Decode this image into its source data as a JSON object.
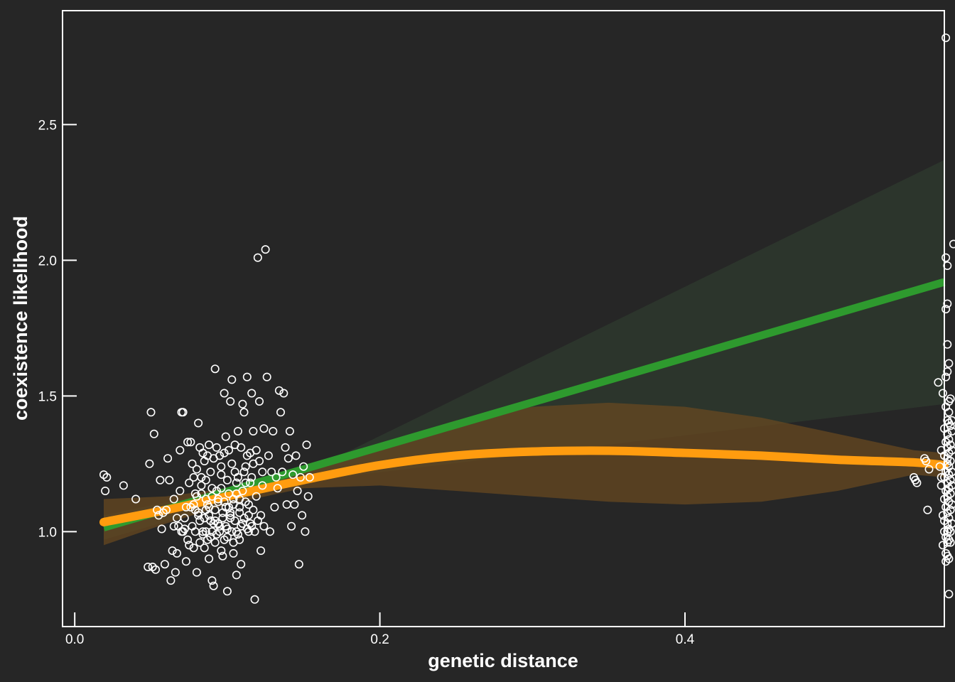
{
  "chart_data": {
    "type": "scatter",
    "xlabel": "genetic distance",
    "ylabel": "coexistence likelihood",
    "xlim": [
      -0.008,
      0.57
    ],
    "ylim": [
      0.65,
      2.92
    ],
    "xticks": [
      0.0,
      0.2,
      0.4
    ],
    "xtick_labels": [
      "0.0",
      "0.2",
      "0.4"
    ],
    "yticks": [
      1.0,
      1.5,
      2.0,
      2.5
    ],
    "ytick_labels": [
      "1.0",
      "1.5",
      "2.0",
      "2.5"
    ],
    "grid": false,
    "legend": "none",
    "colors": {
      "background": "#262626",
      "points": "#ffffff",
      "linear_fit": "#2e9a2e",
      "smooth_fit": "#ff9c0f",
      "linear_band": "#2f3b2f",
      "smooth_band": "#6b4a1f"
    },
    "points": [
      [
        0.019,
        1.21
      ],
      [
        0.02,
        1.15
      ],
      [
        0.021,
        1.2
      ],
      [
        0.032,
        1.17
      ],
      [
        0.04,
        1.12
      ],
      [
        0.048,
        0.87
      ],
      [
        0.049,
        1.25
      ],
      [
        0.05,
        1.44
      ],
      [
        0.051,
        0.87
      ],
      [
        0.052,
        1.36
      ],
      [
        0.053,
        0.86
      ],
      [
        0.054,
        1.08
      ],
      [
        0.055,
        1.06
      ],
      [
        0.056,
        1.19
      ],
      [
        0.057,
        1.01
      ],
      [
        0.058,
        1.07
      ],
      [
        0.059,
        0.88
      ],
      [
        0.06,
        1.08
      ],
      [
        0.061,
        1.27
      ],
      [
        0.062,
        1.19
      ],
      [
        0.063,
        0.82
      ],
      [
        0.064,
        0.93
      ],
      [
        0.065,
        1.02
      ],
      [
        0.066,
        0.85
      ],
      [
        0.067,
        0.92
      ],
      [
        0.068,
        1.02
      ],
      [
        0.069,
        1.3
      ],
      [
        0.07,
        1.44
      ],
      [
        0.071,
        1.44
      ],
      [
        0.072,
        1.01
      ],
      [
        0.073,
        0.89
      ],
      [
        0.074,
        1.33
      ],
      [
        0.075,
        0.95
      ],
      [
        0.076,
        1.33
      ],
      [
        0.077,
        1.25
      ],
      [
        0.078,
        1.2
      ],
      [
        0.079,
        1.08
      ],
      [
        0.08,
        0.85
      ],
      [
        0.081,
        1.4
      ],
      [
        0.082,
        1.31
      ],
      [
        0.083,
        1.17
      ],
      [
        0.084,
        1.0
      ],
      [
        0.085,
        1.26
      ],
      [
        0.086,
        1.12
      ],
      [
        0.087,
        0.97
      ],
      [
        0.088,
        1.32
      ],
      [
        0.089,
        1.04
      ],
      [
        0.09,
        0.82
      ],
      [
        0.091,
        0.8
      ],
      [
        0.092,
        1.6
      ],
      [
        0.093,
        1.15
      ],
      [
        0.094,
        1.03
      ],
      [
        0.095,
        1.28
      ],
      [
        0.096,
        1.21
      ],
      [
        0.097,
        0.91
      ],
      [
        0.098,
        1.51
      ],
      [
        0.099,
        1.35
      ],
      [
        0.1,
        0.78
      ],
      [
        0.101,
        1.09
      ],
      [
        0.102,
        1.48
      ],
      [
        0.103,
        1.56
      ],
      [
        0.104,
        0.96
      ],
      [
        0.105,
        1.22
      ],
      [
        0.106,
        0.84
      ],
      [
        0.107,
        1.37
      ],
      [
        0.108,
        1.12
      ],
      [
        0.109,
        0.88
      ],
      [
        0.11,
        1.47
      ],
      [
        0.111,
        1.44
      ],
      [
        0.112,
        1.18
      ],
      [
        0.113,
        1.57
      ],
      [
        0.114,
        1.0
      ],
      [
        0.115,
        1.29
      ],
      [
        0.116,
        1.51
      ],
      [
        0.117,
        1.37
      ],
      [
        0.118,
        0.75
      ],
      [
        0.119,
        1.3
      ],
      [
        0.12,
        2.01
      ],
      [
        0.121,
        1.48
      ],
      [
        0.122,
        0.93
      ],
      [
        0.123,
        1.22
      ],
      [
        0.124,
        1.38
      ],
      [
        0.125,
        2.04
      ],
      [
        0.126,
        1.57
      ],
      [
        0.127,
        1.28
      ],
      [
        0.128,
        1.0
      ],
      [
        0.129,
        1.22
      ],
      [
        0.13,
        1.37
      ],
      [
        0.131,
        1.09
      ],
      [
        0.132,
        1.2
      ],
      [
        0.133,
        1.16
      ],
      [
        0.134,
        1.52
      ],
      [
        0.135,
        1.44
      ],
      [
        0.136,
        1.22
      ],
      [
        0.137,
        1.51
      ],
      [
        0.138,
        1.31
      ],
      [
        0.139,
        1.1
      ],
      [
        0.14,
        1.27
      ],
      [
        0.141,
        1.37
      ],
      [
        0.142,
        1.02
      ],
      [
        0.143,
        1.21
      ],
      [
        0.144,
        1.1
      ],
      [
        0.145,
        1.28
      ],
      [
        0.146,
        1.15
      ],
      [
        0.147,
        0.88
      ],
      [
        0.148,
        1.2
      ],
      [
        0.149,
        1.06
      ],
      [
        0.15,
        1.24
      ],
      [
        0.151,
        1.0
      ],
      [
        0.152,
        1.32
      ],
      [
        0.153,
        1.13
      ],
      [
        0.154,
        1.2
      ],
      [
        0.085,
        1.05
      ],
      [
        0.086,
        1.0
      ],
      [
        0.087,
        1.1
      ],
      [
        0.088,
        1.06
      ],
      [
        0.089,
        0.98
      ],
      [
        0.09,
        1.13
      ],
      [
        0.091,
        1.03
      ],
      [
        0.092,
        1.08
      ],
      [
        0.093,
        0.99
      ],
      [
        0.094,
        1.11
      ],
      [
        0.095,
        1.02
      ],
      [
        0.096,
        1.16
      ],
      [
        0.097,
        1.05
      ],
      [
        0.098,
        0.97
      ],
      [
        0.099,
        1.09
      ],
      [
        0.1,
        1.01
      ],
      [
        0.101,
        1.14
      ],
      [
        0.102,
        1.06
      ],
      [
        0.103,
        1.0
      ],
      [
        0.104,
        1.12
      ],
      [
        0.105,
        1.04
      ],
      [
        0.106,
        1.18
      ],
      [
        0.107,
        0.99
      ],
      [
        0.108,
        1.07
      ],
      [
        0.109,
        1.02
      ],
      [
        0.11,
        1.15
      ],
      [
        0.111,
        1.05
      ],
      [
        0.112,
        1.24
      ],
      [
        0.113,
        1.01
      ],
      [
        0.114,
        1.1
      ],
      [
        0.115,
        1.03
      ],
      [
        0.116,
        1.2
      ],
      [
        0.117,
        1.08
      ],
      [
        0.118,
        1.0
      ],
      [
        0.119,
        1.13
      ],
      [
        0.12,
        1.04
      ],
      [
        0.121,
        1.26
      ],
      [
        0.122,
        1.06
      ],
      [
        0.123,
        1.17
      ],
      [
        0.124,
        1.02
      ],
      [
        0.078,
        1.1
      ],
      [
        0.079,
        1.0
      ],
      [
        0.08,
        1.23
      ],
      [
        0.081,
        1.06
      ],
      [
        0.082,
        0.96
      ],
      [
        0.083,
        1.14
      ],
      [
        0.084,
        1.29
      ],
      [
        0.085,
        0.94
      ],
      [
        0.086,
        1.19
      ],
      [
        0.087,
        1.28
      ],
      [
        0.088,
        1.09
      ],
      [
        0.089,
        1.22
      ],
      [
        0.09,
        1.0
      ],
      [
        0.091,
        1.27
      ],
      [
        0.092,
        1.04
      ],
      [
        0.093,
        1.31
      ],
      [
        0.094,
        1.12
      ],
      [
        0.095,
        1.0
      ],
      [
        0.096,
        1.24
      ],
      [
        0.097,
        1.07
      ],
      [
        0.098,
        1.29
      ],
      [
        0.099,
        1.02
      ],
      [
        0.1,
        1.19
      ],
      [
        0.101,
        1.3
      ],
      [
        0.102,
        1.05
      ],
      [
        0.103,
        1.25
      ],
      [
        0.104,
        1.1
      ],
      [
        0.105,
        1.32
      ],
      [
        0.106,
        1.0
      ],
      [
        0.107,
        1.2
      ],
      [
        0.108,
        1.09
      ],
      [
        0.109,
        1.31
      ],
      [
        0.11,
        1.03
      ],
      [
        0.111,
        1.22
      ],
      [
        0.112,
        1.11
      ],
      [
        0.113,
        1.28
      ],
      [
        0.114,
        1.06
      ],
      [
        0.115,
        1.18
      ],
      [
        0.116,
        1.02
      ],
      [
        0.117,
        1.25
      ],
      [
        0.07,
        1.0
      ],
      [
        0.072,
        1.05
      ],
      [
        0.074,
        0.97
      ],
      [
        0.076,
        1.09
      ],
      [
        0.078,
        0.94
      ],
      [
        0.08,
        1.13
      ],
      [
        0.082,
        1.04
      ],
      [
        0.084,
        0.99
      ],
      [
        0.086,
        1.08
      ],
      [
        0.088,
        0.9
      ],
      [
        0.09,
        1.16
      ],
      [
        0.092,
        0.96
      ],
      [
        0.094,
        1.03
      ],
      [
        0.096,
        0.93
      ],
      [
        0.098,
        1.11
      ],
      [
        0.1,
        0.98
      ],
      [
        0.102,
        1.07
      ],
      [
        0.104,
        0.92
      ],
      [
        0.106,
        1.14
      ],
      [
        0.108,
        0.97
      ],
      [
        0.065,
        1.12
      ],
      [
        0.067,
        1.05
      ],
      [
        0.069,
        1.15
      ],
      [
        0.071,
        1.0
      ],
      [
        0.073,
        1.09
      ],
      [
        0.075,
        1.18
      ],
      [
        0.077,
        1.02
      ],
      [
        0.079,
        1.14
      ],
      [
        0.081,
        1.07
      ],
      [
        0.083,
        1.2
      ],
      [
        0.55,
        1.2
      ],
      [
        0.551,
        1.19
      ],
      [
        0.552,
        1.18
      ],
      [
        0.557,
        1.27
      ],
      [
        0.558,
        1.26
      ],
      [
        0.559,
        1.08
      ],
      [
        0.56,
        1.23
      ],
      [
        0.566,
        1.55
      ],
      [
        0.567,
        1.24
      ],
      [
        0.568,
        1.3
      ],
      [
        0.568,
        1.2
      ],
      [
        0.568,
        1.17
      ],
      [
        0.569,
        1.06
      ],
      [
        0.569,
        0.95
      ],
      [
        0.569,
        1.51
      ],
      [
        0.57,
        1.12
      ],
      [
        0.57,
        1.28
      ],
      [
        0.57,
        1.38
      ],
      [
        0.57,
        1.0
      ],
      [
        0.57,
        1.04
      ],
      [
        0.57,
        1.2
      ],
      [
        0.571,
        1.57
      ],
      [
        0.571,
        1.46
      ],
      [
        0.571,
        1.33
      ],
      [
        0.571,
        1.22
      ],
      [
        0.571,
        1.15
      ],
      [
        0.571,
        1.09
      ],
      [
        0.571,
        0.98
      ],
      [
        0.571,
        0.92
      ],
      [
        0.571,
        0.89
      ],
      [
        0.571,
        1.82
      ],
      [
        0.571,
        2.01
      ],
      [
        0.571,
        2.82
      ],
      [
        0.572,
        1.98
      ],
      [
        0.572,
        1.84
      ],
      [
        0.572,
        1.69
      ],
      [
        0.572,
        1.59
      ],
      [
        0.572,
        1.41
      ],
      [
        0.572,
        1.36
      ],
      [
        0.572,
        1.31
      ],
      [
        0.572,
        1.27
      ],
      [
        0.572,
        1.25
      ],
      [
        0.572,
        1.18
      ],
      [
        0.572,
        1.13
      ],
      [
        0.572,
        1.07
      ],
      [
        0.572,
        1.03
      ],
      [
        0.572,
        1.0
      ],
      [
        0.572,
        0.96
      ],
      [
        0.572,
        0.91
      ],
      [
        0.573,
        1.62
      ],
      [
        0.573,
        1.48
      ],
      [
        0.573,
        1.44
      ],
      [
        0.573,
        1.4
      ],
      [
        0.573,
        1.34
      ],
      [
        0.573,
        1.29
      ],
      [
        0.573,
        1.24
      ],
      [
        0.573,
        1.21
      ],
      [
        0.573,
        1.16
      ],
      [
        0.573,
        1.11
      ],
      [
        0.573,
        1.05
      ],
      [
        0.573,
        1.01
      ],
      [
        0.573,
        0.97
      ],
      [
        0.573,
        0.9
      ],
      [
        0.573,
        0.77
      ],
      [
        0.574,
        1.49
      ],
      [
        0.574,
        1.39
      ],
      [
        0.574,
        1.32
      ],
      [
        0.574,
        1.26
      ],
      [
        0.574,
        1.19
      ],
      [
        0.574,
        1.14
      ],
      [
        0.574,
        1.08
      ],
      [
        0.574,
        1.0
      ],
      [
        0.574,
        0.96
      ],
      [
        0.575,
        1.41
      ],
      [
        0.575,
        1.37
      ],
      [
        0.575,
        1.3
      ],
      [
        0.575,
        1.22
      ],
      [
        0.575,
        1.17
      ],
      [
        0.575,
        1.1
      ],
      [
        0.575,
        1.03
      ],
      [
        0.576,
        2.06
      ]
    ],
    "linear_fit": {
      "x": [
        0.019,
        0.57
      ],
      "y": [
        1.015,
        1.92
      ]
    },
    "linear_band": {
      "x": [
        0.019,
        0.15,
        0.57
      ],
      "upper": [
        1.06,
        1.215,
        2.37
      ],
      "lower": [
        0.97,
        1.185,
        1.47
      ]
    },
    "smooth_fit": {
      "x": [
        0.019,
        0.06,
        0.1,
        0.15,
        0.2,
        0.25,
        0.3,
        0.35,
        0.4,
        0.45,
        0.5,
        0.55,
        0.57
      ],
      "y": [
        1.035,
        1.08,
        1.13,
        1.19,
        1.245,
        1.28,
        1.295,
        1.298,
        1.29,
        1.28,
        1.265,
        1.255,
        1.245
      ]
    },
    "smooth_band": {
      "x": [
        0.019,
        0.06,
        0.1,
        0.15,
        0.2,
        0.25,
        0.3,
        0.35,
        0.4,
        0.45,
        0.5,
        0.55,
        0.57
      ],
      "upper": [
        1.12,
        1.13,
        1.16,
        1.22,
        1.32,
        1.41,
        1.46,
        1.475,
        1.46,
        1.42,
        1.36,
        1.3,
        1.29
      ],
      "lower": [
        0.95,
        1.03,
        1.1,
        1.16,
        1.17,
        1.15,
        1.13,
        1.11,
        1.1,
        1.11,
        1.15,
        1.21,
        1.2
      ]
    }
  }
}
